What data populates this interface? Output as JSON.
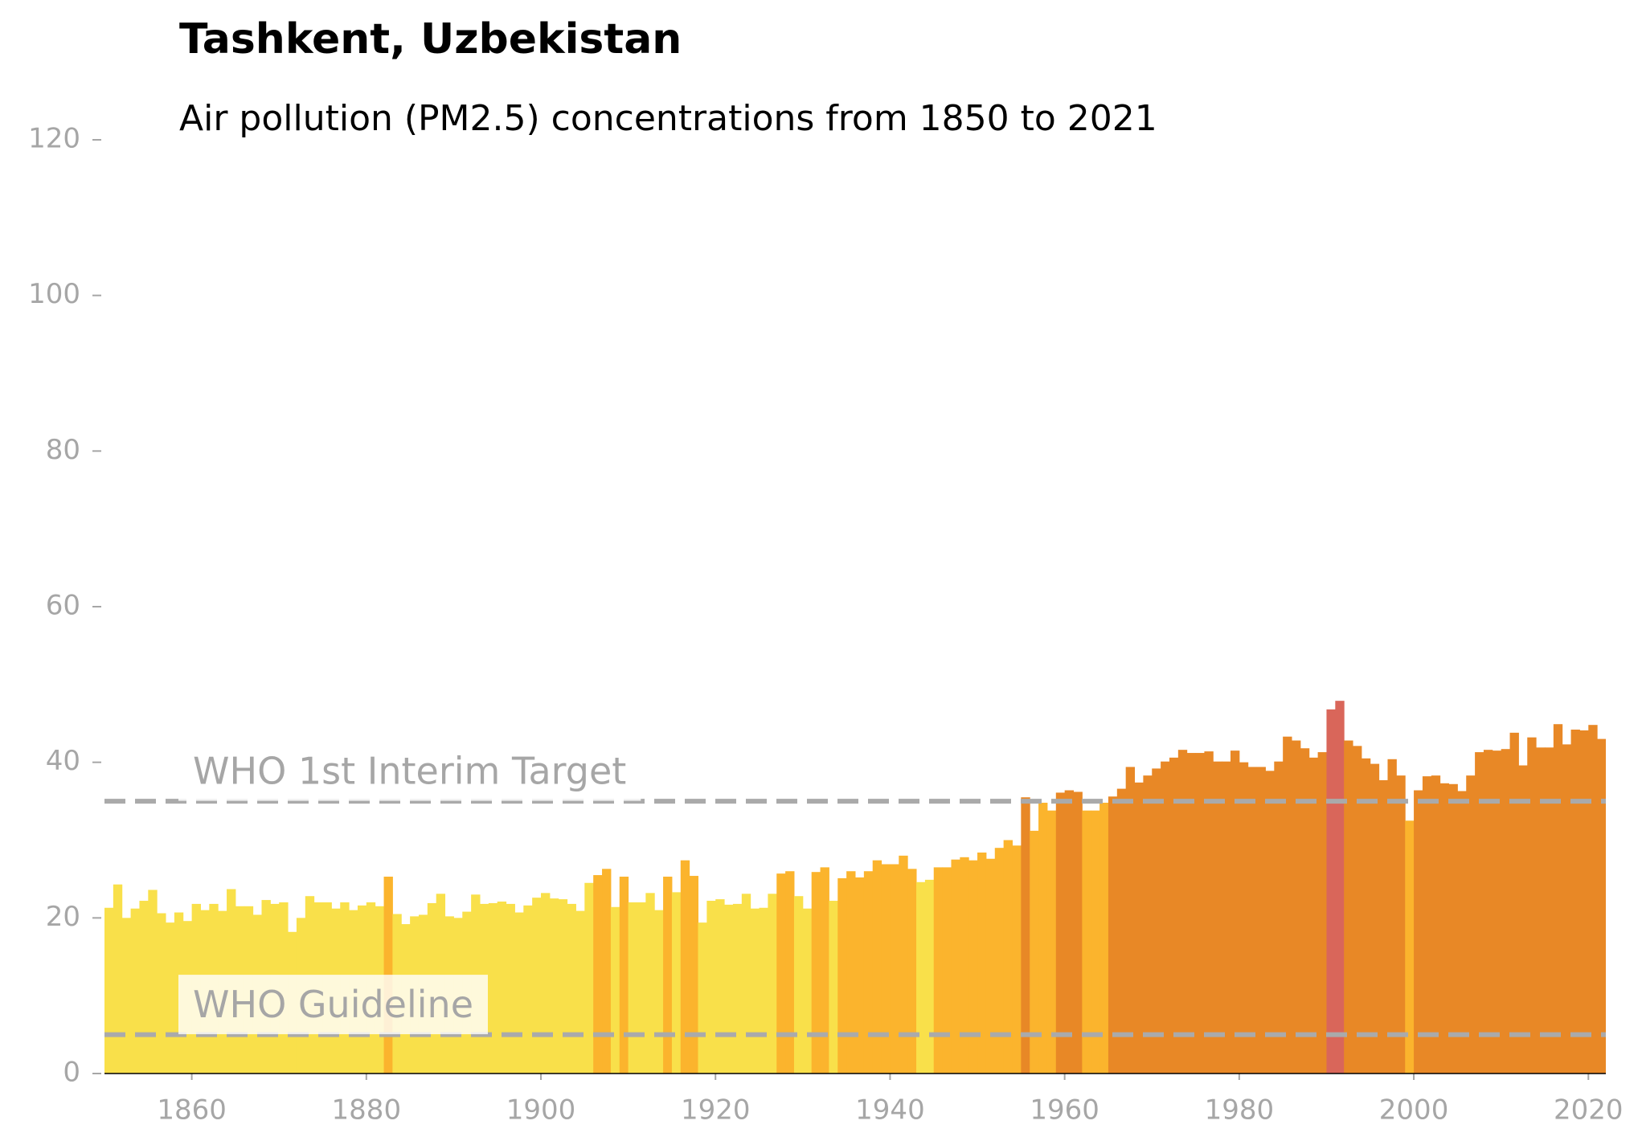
{
  "chart_data": {
    "type": "bar",
    "title": "Tashkent, Uzbekistan",
    "subtitle": "Air pollution (PM2.5) concentrations from 1850 to 2021",
    "x": [
      1850,
      1851,
      1852,
      1853,
      1854,
      1855,
      1856,
      1857,
      1858,
      1859,
      1860,
      1861,
      1862,
      1863,
      1864,
      1865,
      1866,
      1867,
      1868,
      1869,
      1870,
      1871,
      1872,
      1873,
      1874,
      1875,
      1876,
      1877,
      1878,
      1879,
      1880,
      1881,
      1882,
      1883,
      1884,
      1885,
      1886,
      1887,
      1888,
      1889,
      1890,
      1891,
      1892,
      1893,
      1894,
      1895,
      1896,
      1897,
      1898,
      1899,
      1900,
      1901,
      1902,
      1903,
      1904,
      1905,
      1906,
      1907,
      1908,
      1909,
      1910,
      1911,
      1912,
      1913,
      1914,
      1915,
      1916,
      1917,
      1918,
      1919,
      1920,
      1921,
      1922,
      1923,
      1924,
      1925,
      1926,
      1927,
      1928,
      1929,
      1930,
      1931,
      1932,
      1933,
      1934,
      1935,
      1936,
      1937,
      1938,
      1939,
      1940,
      1941,
      1942,
      1943,
      1944,
      1945,
      1946,
      1947,
      1948,
      1949,
      1950,
      1951,
      1952,
      1953,
      1954,
      1955,
      1956,
      1957,
      1958,
      1959,
      1960,
      1961,
      1962,
      1963,
      1964,
      1965,
      1966,
      1967,
      1968,
      1969,
      1970,
      1971,
      1972,
      1973,
      1974,
      1975,
      1976,
      1977,
      1978,
      1979,
      1980,
      1981,
      1982,
      1983,
      1984,
      1985,
      1986,
      1987,
      1988,
      1989,
      1990,
      1991,
      1992,
      1993,
      1994,
      1995,
      1996,
      1997,
      1998,
      1999,
      2000,
      2001,
      2002,
      2003,
      2004,
      2005,
      2006,
      2007,
      2008,
      2009,
      2010,
      2011,
      2012,
      2013,
      2014,
      2015,
      2016,
      2017,
      2018,
      2019,
      2020,
      2021
    ],
    "values": [
      21.3,
      24.3,
      20,
      21.2,
      22.2,
      23.6,
      20.6,
      19.4,
      20.7,
      19.6,
      21.8,
      21,
      21.8,
      20.9,
      23.7,
      21.5,
      21.5,
      20.4,
      22.3,
      21.8,
      22,
      18.2,
      20,
      22.8,
      22,
      22,
      21.2,
      22,
      21,
      21.6,
      22,
      21.5,
      25.3,
      20.5,
      19.2,
      20.2,
      20.4,
      21.9,
      23.1,
      20.2,
      20,
      20.8,
      23,
      21.8,
      21.9,
      22.1,
      21.8,
      20.7,
      21.6,
      22.6,
      23.2,
      22.5,
      22.4,
      21.8,
      20.9,
      24.5,
      25.5,
      26.3,
      21.4,
      25.3,
      22,
      22,
      23.2,
      21,
      25.3,
      23.3,
      27.4,
      25.4,
      19.4,
      22.2,
      22.4,
      21.7,
      21.8,
      23.1,
      21.2,
      21.3,
      23.1,
      25.7,
      26,
      22.8,
      21.2,
      25.9,
      26.5,
      22.2,
      25.1,
      26,
      25.2,
      26,
      27.4,
      26.9,
      26.9,
      28,
      26.3,
      24.6,
      24.9,
      26.5,
      26.5,
      27.5,
      27.8,
      27.4,
      28.4,
      27.6,
      29,
      30,
      29.3,
      35.5,
      31.2,
      34.8,
      33.8,
      36.1,
      36.4,
      36.2,
      33.8,
      33.8,
      34.8,
      35.6,
      36.6,
      39.4,
      37.4,
      38.3,
      39.2,
      40.1,
      40.6,
      41.6,
      41.2,
      41.2,
      41.4,
      40.1,
      40.1,
      41.5,
      40,
      39.4,
      39.4,
      38.9,
      40.1,
      43.3,
      42.8,
      41.8,
      40.6,
      41.3,
      46.8,
      47.9,
      42.8,
      42.1,
      40.5,
      39.8,
      37.7,
      40.4,
      38.3,
      32.5,
      36.4,
      38.2,
      38.3,
      37.3,
      37.2,
      36.3,
      38.3,
      41.3,
      41.6,
      41.5,
      41.7,
      43.8,
      39.6,
      43.2,
      41.9,
      41.9,
      44.9,
      42.3,
      44.2,
      44.1,
      44.8,
      43
    ],
    "color_thresholds": [
      25,
      35,
      45
    ],
    "colors": [
      "#f9e04a",
      "#fbb42d",
      "#e88826",
      "#d9665a"
    ],
    "xlim": [
      1850,
      2022
    ],
    "ylim": [
      0,
      120
    ],
    "xticks": [
      1860,
      1880,
      1900,
      1920,
      1940,
      1960,
      1980,
      2000,
      2020
    ],
    "yticks": [
      0,
      20,
      40,
      60,
      80,
      100,
      120
    ],
    "reference_lines": [
      {
        "label": "WHO 1st Interim Target",
        "value": 35
      },
      {
        "label": "WHO Guideline",
        "value": 5
      }
    ],
    "grid": false
  }
}
